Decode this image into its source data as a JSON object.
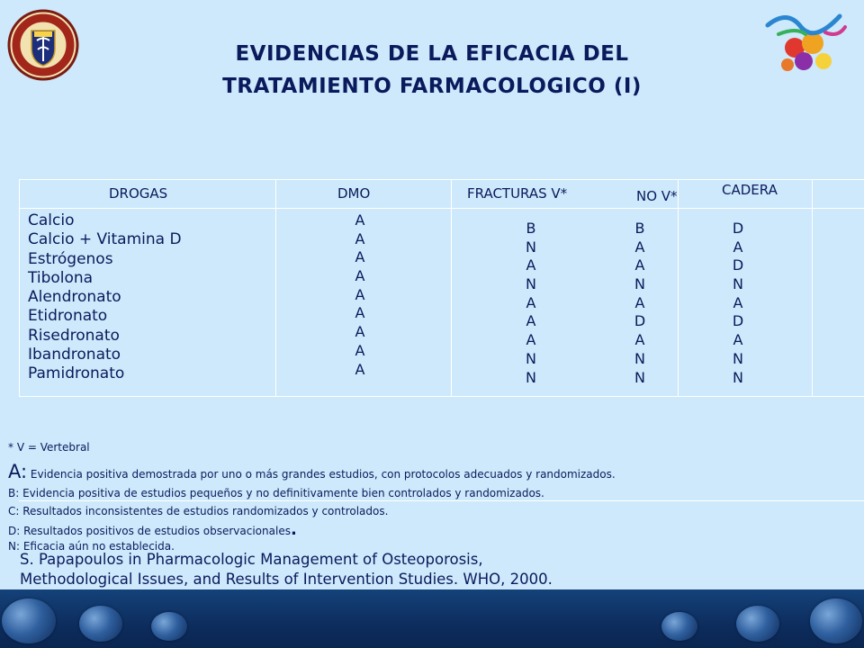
{
  "title": {
    "line1": "EVIDENCIAS DE LA EFICACIA DEL",
    "line2": "TRATAMIENTO FARMACOLOGICO (I)"
  },
  "table": {
    "headers": {
      "drogas": "DROGAS",
      "dmo": "DMO",
      "fracturas_v": "FRACTURAS V*",
      "no_v": "NO V*",
      "cadera": "CADERA"
    },
    "drugs": [
      "Calcio",
      "Calcio + Vitamina D",
      "Estrógenos",
      "Tibolona",
      "Alendronato",
      "Etidronato",
      "Risedronato",
      "Ibandronato",
      "Pamidronato"
    ],
    "dmo": [
      "A",
      "A",
      "A",
      "A",
      "A",
      "A",
      "A",
      "A",
      "A"
    ],
    "fracturas_v": [
      "B",
      "N",
      "A",
      "N",
      "A",
      "A",
      "A",
      "N",
      "N"
    ],
    "no_v": [
      "B",
      "A",
      "A",
      "N",
      "A",
      "D",
      "A",
      "N",
      "N"
    ],
    "cadera": [
      "D",
      "A",
      "D",
      "N",
      "A",
      "D",
      "A",
      "N",
      "N"
    ]
  },
  "footnotes": {
    "vertebral": "* V = Vertebral",
    "a_letter": "A:",
    "a_text": " Evidencia positiva demostrada por uno o más grandes estudios, con protocolos adecuados y randomizados.",
    "b": "B: Evidencia positiva de estudios pequeños y no definitivamente bien controlados y randomizados.",
    "c": "C: Resultados inconsistentes de estudios randomizados y controlados.",
    "d_text": "D: Resultados positivos de estudios observacionales",
    "d_dot": ".",
    "n": "N: Eficacia aún no establecida."
  },
  "citation": {
    "line1": "S. Papapoulos in Pharmacologic Management of Osteoporosis,",
    "line2": "Methodological Issues, and Results of Intervention Studies. WHO, 2000."
  },
  "colors": {
    "background": "#cde9fb",
    "text": "#0b1a5c",
    "bottom_bar": "#0d2d5e"
  },
  "icons": {
    "left_logo": "university-seal-icon",
    "right_logo": "decorative-pharma-logo-icon"
  }
}
